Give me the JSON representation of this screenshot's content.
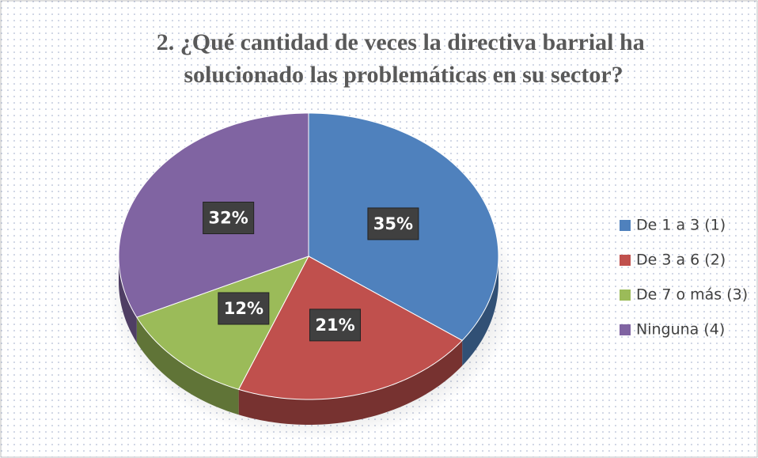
{
  "chart_data": {
    "type": "pie",
    "title": [
      "2. ¿Qué cantidad de veces la directiva barrial ha",
      "solucionado las problemáticas en su sector?"
    ],
    "categories": [
      "De 1 a 3 (1)",
      "De 3 a 6 (2)",
      "De 7 o más (3)",
      "Ninguna (4)"
    ],
    "values": [
      35,
      21,
      12,
      32
    ],
    "value_labels": [
      "35%",
      "21%",
      "12%",
      "32%"
    ],
    "colors": [
      "#4f81bd",
      "#c0504d",
      "#9bbb59",
      "#8064a2"
    ],
    "legend": "right"
  }
}
